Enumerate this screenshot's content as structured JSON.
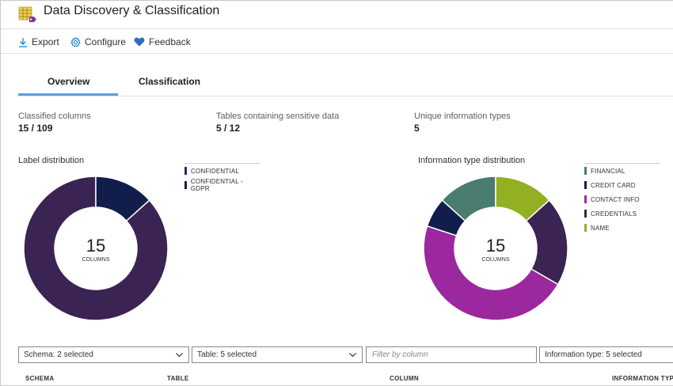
{
  "window": {
    "title": "Data Discovery & Classification"
  },
  "toolbar": {
    "export_label": "Export",
    "configure_label": "Configure",
    "feedback_label": "Feedback"
  },
  "tabs": [
    {
      "label": "Overview",
      "selected": true
    },
    {
      "label": "Classification",
      "selected": false
    }
  ],
  "stats": {
    "classified_columns": {
      "label": "Classified columns",
      "value": "15 / 109"
    },
    "tables_sensitive": {
      "label": "Tables containing sensitive data",
      "value": "5 / 12"
    },
    "unique_types": {
      "label": "Unique information types",
      "value": "5"
    }
  },
  "chart_data": [
    {
      "type": "pie",
      "title": "Label distribution",
      "center_value": "15",
      "center_label": "COLUMNS",
      "categories": [
        "CONFIDENTIAL",
        "CONFIDENTIAL - GDPR"
      ],
      "values": [
        13,
        2
      ],
      "colors": [
        "#3b2354",
        "#111d4a"
      ]
    },
    {
      "type": "pie",
      "title": "Information type distribution",
      "center_value": "15",
      "center_label": "COLUMNS",
      "categories": [
        "FINANCIAL",
        "CREDIT CARD",
        "CONTACT INFO",
        "CREDENTIALS",
        "NAME"
      ],
      "values": [
        2,
        1,
        7,
        3,
        2
      ],
      "colors": [
        "#4a7c6f",
        "#111d4a",
        "#9b289f",
        "#3b2354",
        "#93b022"
      ]
    }
  ],
  "filters": {
    "schema": "Schema: 2 selected",
    "table": "Table: 5 selected",
    "column_placeholder": "Filter by column",
    "information_type": "Information type: 5 selected"
  },
  "table_headers": [
    "SCHEMA",
    "TABLE",
    "COLUMN",
    "INFORMATION TYPE"
  ],
  "icons": {
    "app": "data-classification-icon",
    "export": "download-icon",
    "configure": "gear-icon",
    "feedback": "heart-icon",
    "dropdown": "chevron-down-icon"
  }
}
